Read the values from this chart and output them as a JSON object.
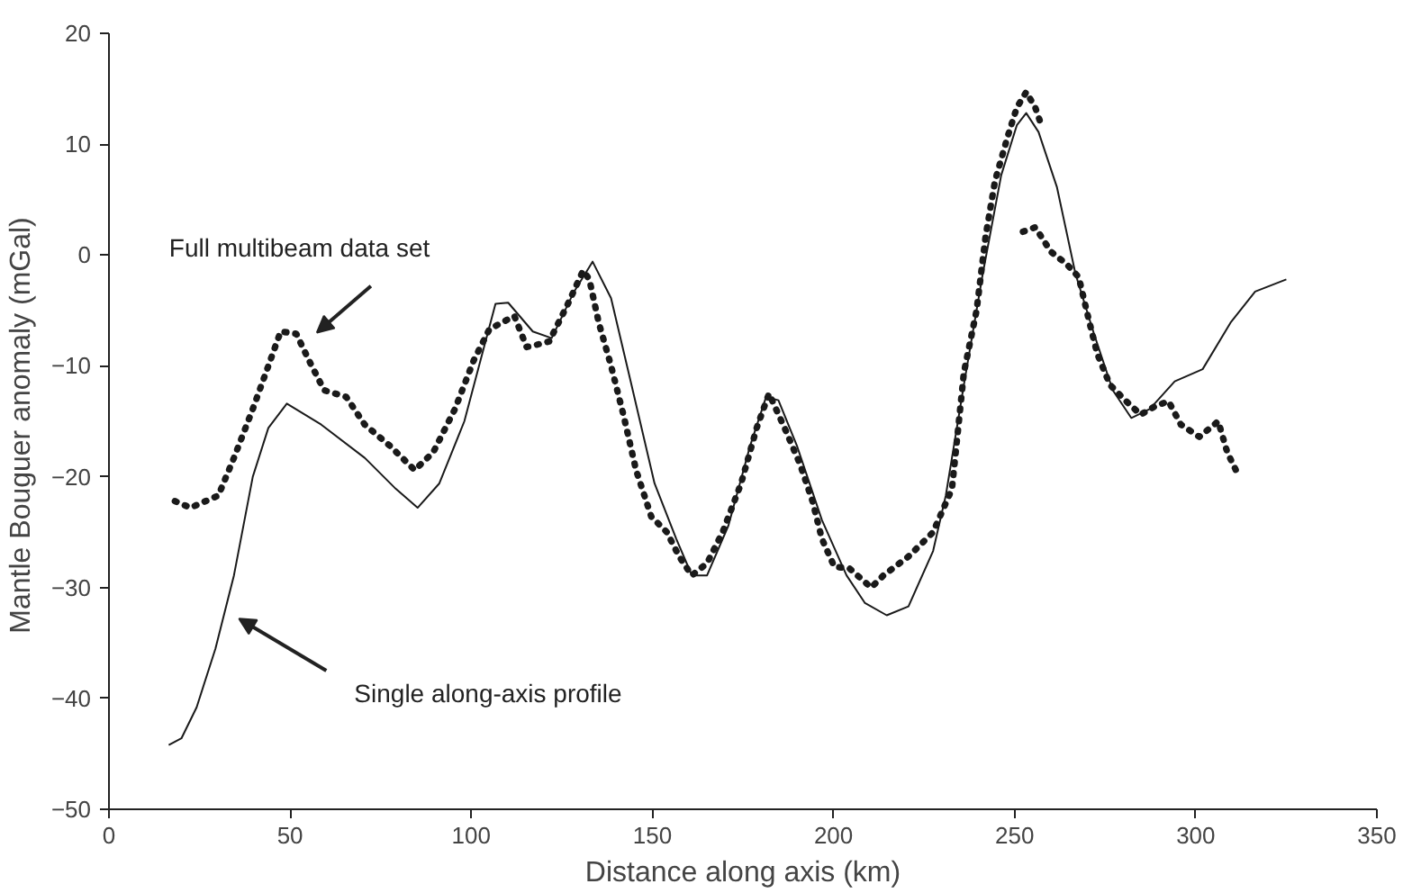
{
  "chart_data": {
    "type": "line",
    "xlabel": "Distance along axis (km)",
    "ylabel": "Mantle Bouguer anomaly  (mGal)",
    "xlim": [
      0,
      350
    ],
    "ylim": [
      -50,
      20
    ],
    "xticks": [
      0,
      50,
      100,
      150,
      200,
      250,
      300,
      350
    ],
    "yticks": [
      -50,
      -40,
      -30,
      -20,
      -10,
      0,
      10,
      20
    ],
    "grid": false,
    "series": [
      {
        "color": "#1a1a1a",
        "line_style": "dotted",
        "x": [
          18.2,
          22.5,
          30.2,
          34.5,
          39.7,
          44,
          47.4,
          51.7,
          55.2,
          59.4,
          65.5,
          70.6,
          77.5,
          84.4,
          89.5,
          95.5,
          100.7,
          105,
          111.9,
          115.3,
          118,
          121.5,
          126.7,
          130.9,
          132.6,
          135.2,
          138.6,
          142,
          145.5,
          149.7,
          154,
          157.4,
          160.9,
          165.1,
          169.4,
          174.5,
          178.8,
          182.2,
          186.5,
          190.8,
          194.2,
          196.8,
          200.2,
          204.5,
          210.4,
          213.8,
          220.7,
          227.5,
          232.7,
          236,
          239.5,
          242,
          244.6,
          248,
          250.6,
          253.2,
          255.7,
          257.4
        ],
        "values": [
          -22.2,
          -22.8,
          -21.7,
          -18.3,
          -13.9,
          -10,
          -6.9,
          -7.1,
          -9.5,
          -12.2,
          -12.8,
          -15.3,
          -17.2,
          -19.4,
          -17.8,
          -13.9,
          -9.5,
          -6.7,
          -5.5,
          -8.3,
          -8.1,
          -7.8,
          -4.4,
          -1.4,
          -2.2,
          -6.1,
          -10,
          -14.4,
          -19.4,
          -23.6,
          -25,
          -27.2,
          -28.9,
          -27.8,
          -25,
          -20.6,
          -15.6,
          -12.5,
          -15.6,
          -18.9,
          -22.2,
          -25.6,
          -28.1,
          -28.3,
          -30,
          -28.9,
          -27.2,
          -25,
          -21.1,
          -10.6,
          -5,
          1.7,
          6.7,
          10.6,
          13.3,
          14.7,
          13.3,
          11.7
        ]
      },
      {
        "color": "#1a1a1a",
        "line_style": "dotted",
        "x": [
          252.3,
          255.7,
          260,
          264.3,
          267.7,
          270.3,
          272.8,
          276.3,
          280.5,
          284.8,
          289,
          292.5,
          295.9,
          301,
          306.2,
          308.7,
          312.1
        ],
        "values": [
          2.1,
          2.5,
          0.3,
          -0.8,
          -2,
          -5.6,
          -8.9,
          -11.7,
          -13.1,
          -14.4,
          -13.6,
          -13.2,
          -15.3,
          -16.4,
          -15,
          -17.8,
          -20.1
        ]
      },
      {
        "color": "#1a1a1a",
        "line_style": "solid",
        "x": [
          16.5,
          20,
          24.2,
          29.4,
          34.5,
          39.7,
          44,
          49.1,
          58.6,
          70.6,
          79.2,
          85.2,
          91.2,
          98.1,
          106.7,
          110.2,
          117,
          122.2,
          128.4,
          133.5,
          138.6,
          143.8,
          150.6,
          156.6,
          160.9,
          165.1,
          171,
          177,
          181.4,
          184.8,
          189.9,
          196.8,
          203.6,
          208.7,
          214.7,
          220.7,
          227.5,
          231,
          236,
          241.2,
          246.3,
          250.6,
          253.2,
          256.6,
          261.7,
          266.8,
          272,
          277.1,
          282.2,
          287.3,
          294.2,
          301.9,
          309.6,
          316.4,
          325
        ],
        "values": [
          -44.2,
          -43.6,
          -40.8,
          -35.5,
          -28.9,
          -20,
          -15.6,
          -13.4,
          -15.3,
          -18.3,
          -21.1,
          -22.8,
          -20.6,
          -15,
          -4.4,
          -4.3,
          -6.9,
          -7.5,
          -3.3,
          -0.6,
          -3.9,
          -11.1,
          -20.6,
          -25.6,
          -28.9,
          -28.9,
          -24.4,
          -17.2,
          -12.8,
          -13.1,
          -17.2,
          -23.9,
          -28.9,
          -31.4,
          -32.5,
          -31.7,
          -26.7,
          -21.7,
          -11.7,
          -1.7,
          7.2,
          11.7,
          12.8,
          11.1,
          6.1,
          -1.7,
          -7.2,
          -12.2,
          -14.7,
          -13.9,
          -11.4,
          -10.3,
          -6.1,
          -3.3,
          -2.2
        ]
      }
    ],
    "annotations": [
      "Full multibeam data set",
      "Single along-axis profile"
    ]
  }
}
